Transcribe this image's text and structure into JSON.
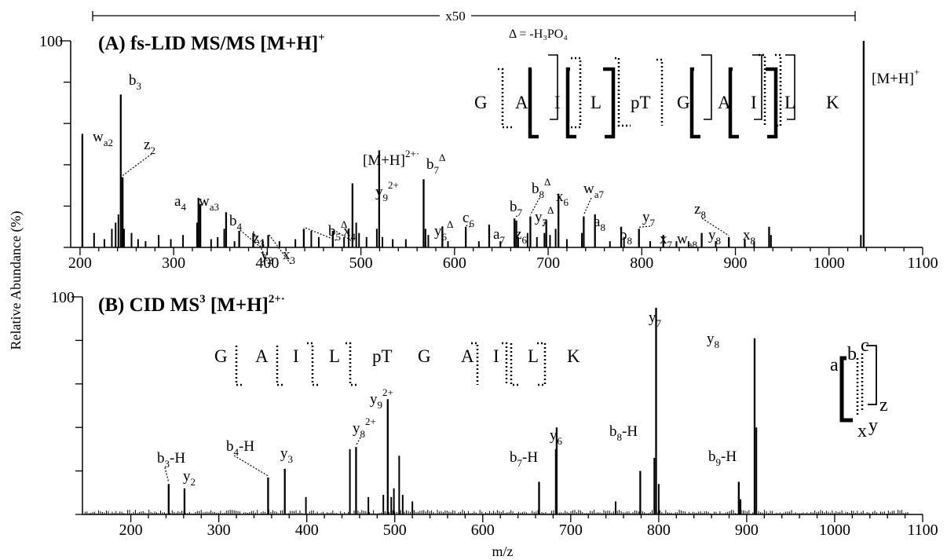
{
  "figure": {
    "ylabel": "Relative Abundance (%)",
    "xlabel": "m/z"
  },
  "chart_data": [
    {
      "id": "A",
      "type": "bar",
      "title": "(A) fs-LID MS/MS [M+H]",
      "title_sup": "+",
      "xlim": [
        190,
        1100
      ],
      "ylim": [
        0,
        100
      ],
      "xticks": [
        200,
        300,
        400,
        500,
        600,
        700,
        800,
        900,
        1000,
        1100
      ],
      "ytick_label": "100",
      "magnification": {
        "label": "x50",
        "from": 200,
        "to": 1028
      },
      "delta_note": "Δ = -H₃PO₄",
      "sequence": [
        "G",
        "A",
        "I",
        "L",
        "pT",
        "G",
        "A",
        "I",
        "L",
        "K"
      ],
      "peaks": [
        {
          "mz": 202.5,
          "y": 55,
          "label": "w",
          "sub": "a2",
          "sup": ""
        },
        {
          "mz": 243.5,
          "y": 74,
          "label": "b",
          "sub": "3",
          "sup": ""
        },
        {
          "mz": 245.5,
          "y": 34,
          "label": "z",
          "sub": "2",
          "sup": ""
        },
        {
          "mz": 326.5,
          "y": 24,
          "label": "a",
          "sub": "4",
          "sup": ""
        },
        {
          "mz": 328.5,
          "y": 21,
          "label": "w",
          "sub": "a3",
          "sup": ""
        },
        {
          "mz": 356,
          "y": 17,
          "label": "b",
          "sub": "4",
          "sup": ""
        },
        {
          "mz": 370,
          "y": 8,
          "label": "z",
          "sub": "3",
          "sup": ""
        },
        {
          "mz": 385,
          "y": 7,
          "label": "y",
          "sub": "3",
          "sup": ""
        },
        {
          "mz": 401,
          "y": 6,
          "label": "x",
          "sub": "3",
          "sup": ""
        },
        {
          "mz": 439,
          "y": 9,
          "label": "b",
          "sub": "5",
          "sup": "Δ"
        },
        {
          "mz": 470,
          "y": 8,
          "label": "x",
          "sub": "4",
          "sup": ""
        },
        {
          "mz": 491,
          "y": 31,
          "label": "y",
          "sub": "9",
          "sup": "2+"
        },
        {
          "mz": 519.5,
          "y": 47,
          "label": "[M+H]",
          "sub": "",
          "sup": "2+·"
        },
        {
          "mz": 567,
          "y": 33,
          "label": "b",
          "sub": "7",
          "sup": "Δ"
        },
        {
          "mz": 587,
          "y": 10,
          "label": "y",
          "sub": "6",
          "sup": "Δ"
        },
        {
          "mz": 612,
          "y": 10,
          "label": "c",
          "sub": "6",
          "sup": ""
        },
        {
          "mz": 637,
          "y": 11,
          "label": "a",
          "sub": "7",
          "sup": ""
        },
        {
          "mz": 664,
          "y": 14,
          "label": "b",
          "sub": "7",
          "sup": ""
        },
        {
          "mz": 666,
          "y": 13,
          "label": "z",
          "sub": "6",
          "sup": ""
        },
        {
          "mz": 681,
          "y": 15,
          "label": "b",
          "sub": "8",
          "sup": "Δ"
        },
        {
          "mz": 698,
          "y": 13,
          "label": "y",
          "sub": "7",
          "sup": "Δ"
        },
        {
          "mz": 711,
          "y": 26,
          "label": "x",
          "sub": "6",
          "sup": ""
        },
        {
          "mz": 738,
          "y": 15,
          "label": "w",
          "sub": "a7",
          "sup": ""
        },
        {
          "mz": 750,
          "y": 16,
          "label": "a",
          "sub": "8",
          "sup": ""
        },
        {
          "mz": 778,
          "y": 10,
          "label": "b",
          "sub": "8",
          "sup": ""
        },
        {
          "mz": 797,
          "y": 9,
          "label": "y",
          "sub": "7",
          "sup": ""
        },
        {
          "mz": 823,
          "y": 6,
          "label": "x",
          "sub": "7",
          "sup": ""
        },
        {
          "mz": 864,
          "y": 7,
          "label": "w",
          "sub": "a8",
          "sup": ""
        },
        {
          "mz": 893,
          "y": 5,
          "label": "z",
          "sub": "8",
          "sup": ""
        },
        {
          "mz": 910,
          "y": 4,
          "label": "y",
          "sub": "8",
          "sup": ""
        },
        {
          "mz": 936,
          "y": 10,
          "label": "x",
          "sub": "8",
          "sup": ""
        },
        {
          "mz": 1037,
          "y": 100,
          "label": "[M+H]",
          "sub": "",
          "sup": "+"
        }
      ],
      "minor_peaks": [
        {
          "mz": 215,
          "y": 7
        },
        {
          "mz": 226,
          "y": 4
        },
        {
          "mz": 234,
          "y": 9
        },
        {
          "mz": 238,
          "y": 12
        },
        {
          "mz": 241,
          "y": 16
        },
        {
          "mz": 247,
          "y": 9
        },
        {
          "mz": 255,
          "y": 7
        },
        {
          "mz": 262,
          "y": 4
        },
        {
          "mz": 270,
          "y": 3
        },
        {
          "mz": 284,
          "y": 6
        },
        {
          "mz": 297,
          "y": 4
        },
        {
          "mz": 310,
          "y": 6
        },
        {
          "mz": 325,
          "y": 12
        },
        {
          "mz": 340,
          "y": 4
        },
        {
          "mz": 347,
          "y": 5
        },
        {
          "mz": 354,
          "y": 9
        },
        {
          "mz": 365,
          "y": 3
        },
        {
          "mz": 395,
          "y": 4
        },
        {
          "mz": 413,
          "y": 3
        },
        {
          "mz": 430,
          "y": 4
        },
        {
          "mz": 447,
          "y": 8
        },
        {
          "mz": 455,
          "y": 5
        },
        {
          "mz": 482,
          "y": 5
        },
        {
          "mz": 487,
          "y": 9
        },
        {
          "mz": 495,
          "y": 12
        },
        {
          "mz": 498,
          "y": 7
        },
        {
          "mz": 506,
          "y": 5
        },
        {
          "mz": 517,
          "y": 9
        },
        {
          "mz": 523,
          "y": 5
        },
        {
          "mz": 534,
          "y": 4
        },
        {
          "mz": 548,
          "y": 4
        },
        {
          "mz": 569,
          "y": 9
        },
        {
          "mz": 572,
          "y": 6
        },
        {
          "mz": 593,
          "y": 3
        },
        {
          "mz": 626,
          "y": 3
        },
        {
          "mz": 649,
          "y": 3
        },
        {
          "mz": 668,
          "y": 5
        },
        {
          "mz": 678,
          "y": 7
        },
        {
          "mz": 688,
          "y": 5
        },
        {
          "mz": 696,
          "y": 7
        },
        {
          "mz": 702,
          "y": 6
        },
        {
          "mz": 708,
          "y": 9
        },
        {
          "mz": 720,
          "y": 4
        },
        {
          "mz": 736,
          "y": 7
        },
        {
          "mz": 766,
          "y": 3
        },
        {
          "mz": 781,
          "y": 5
        },
        {
          "mz": 809,
          "y": 3
        },
        {
          "mz": 837,
          "y": 3
        },
        {
          "mz": 850,
          "y": 3
        },
        {
          "mz": 879,
          "y": 3
        },
        {
          "mz": 920,
          "y": 3
        },
        {
          "mz": 938,
          "y": 6
        },
        {
          "mz": 1034,
          "y": 6
        }
      ]
    },
    {
      "id": "B",
      "type": "bar",
      "title": "(B) CID MS",
      "title_sup": "3",
      "title_ion": " [M+H]",
      "title_ion_sup": "2+·",
      "xlim": [
        145,
        1100
      ],
      "ylim": [
        0,
        100
      ],
      "xticks": [
        200,
        300,
        400,
        500,
        600,
        700,
        800,
        900,
        1000,
        1100
      ],
      "ytick_label": "100",
      "sequence": [
        "G",
        "A",
        "I",
        "L",
        "pT",
        "G",
        "A",
        "I",
        "L",
        "K"
      ],
      "legend_letters": [
        "a",
        "b",
        "c",
        "x",
        "y",
        "z"
      ],
      "peaks": [
        {
          "mz": 243,
          "y": 14,
          "label": "b",
          "sub": "3",
          "sup": "-H"
        },
        {
          "mz": 261,
          "y": 12,
          "label": "y",
          "sub": "2",
          "sup": ""
        },
        {
          "mz": 356,
          "y": 17,
          "label": "b",
          "sub": "4",
          "sup": "-H"
        },
        {
          "mz": 375,
          "y": 21,
          "label": "y",
          "sub": "3",
          "sup": ""
        },
        {
          "mz": 456,
          "y": 31,
          "label": "y",
          "sub": "8",
          "sup": "2+"
        },
        {
          "mz": 492,
          "y": 53,
          "label": "y",
          "sub": "9",
          "sup": "2+"
        },
        {
          "mz": 664,
          "y": 15,
          "label": "b",
          "sub": "7",
          "sup": "-H"
        },
        {
          "mz": 684,
          "y": 40,
          "label": "y",
          "sub": "6",
          "sup": ""
        },
        {
          "mz": 779,
          "y": 20,
          "label": "b",
          "sub": "8",
          "sup": "-H"
        },
        {
          "mz": 797,
          "y": 95,
          "label": "y",
          "sub": "7",
          "sup": ""
        },
        {
          "mz": 891,
          "y": 15,
          "label": "b",
          "sub": "9",
          "sup": "-H"
        },
        {
          "mz": 909,
          "y": 81,
          "label": "y",
          "sub": "8",
          "sup": ""
        }
      ],
      "minor_peaks": [
        {
          "mz": 399,
          "y": 8
        },
        {
          "mz": 449,
          "y": 30
        },
        {
          "mz": 470,
          "y": 8
        },
        {
          "mz": 487,
          "y": 9
        },
        {
          "mz": 496,
          "y": 8
        },
        {
          "mz": 499,
          "y": 12
        },
        {
          "mz": 505,
          "y": 27
        },
        {
          "mz": 509,
          "y": 9
        },
        {
          "mz": 520,
          "y": 6
        },
        {
          "mz": 683,
          "y": 30
        },
        {
          "mz": 751,
          "y": 6
        },
        {
          "mz": 795,
          "y": 26
        },
        {
          "mz": 800,
          "y": 14
        },
        {
          "mz": 893,
          "y": 7
        },
        {
          "mz": 911,
          "y": 40
        }
      ]
    }
  ]
}
